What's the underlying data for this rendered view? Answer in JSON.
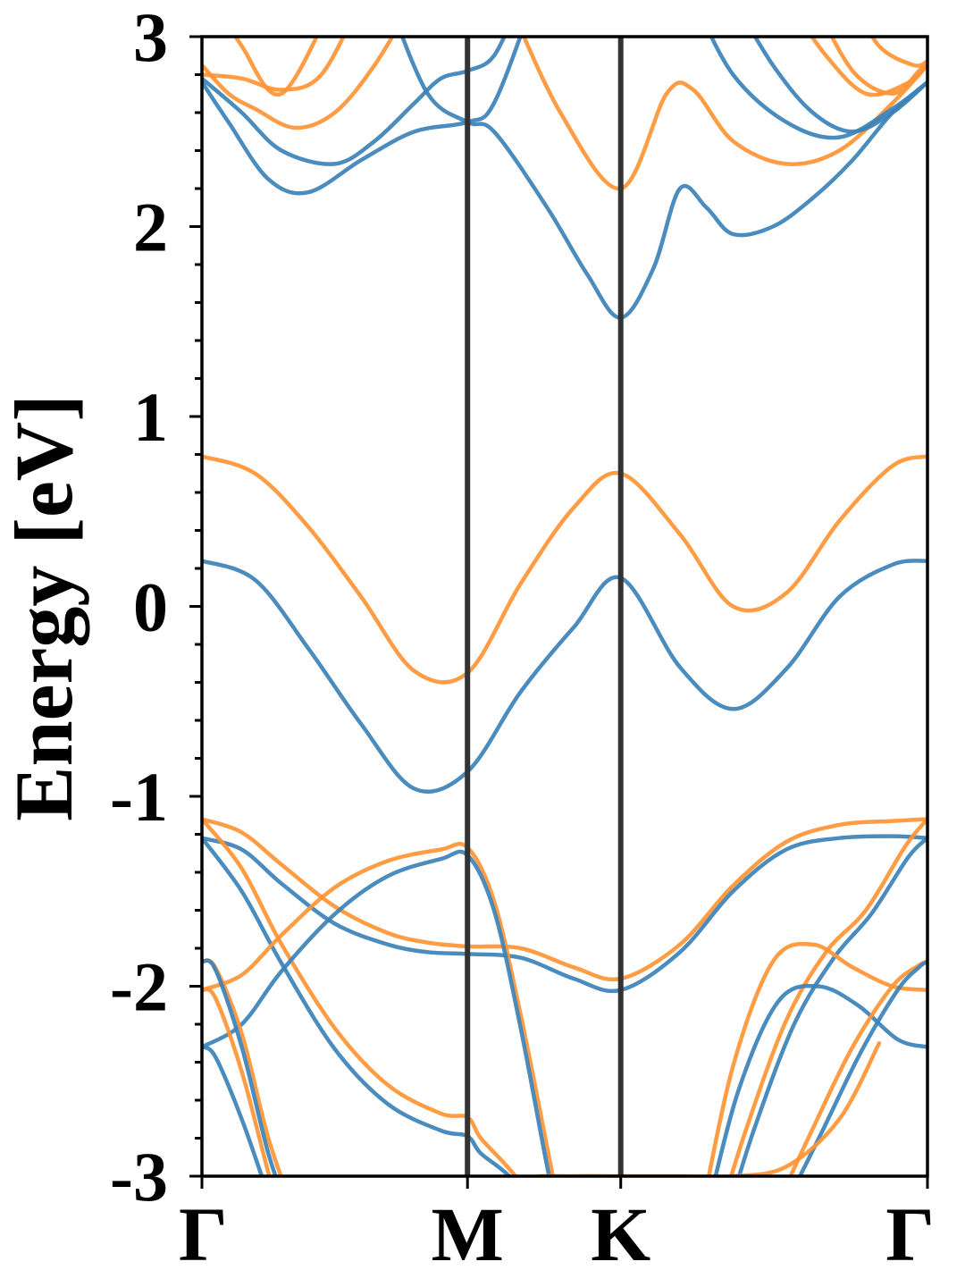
{
  "chart_data": {
    "type": "line",
    "title": "",
    "xlabel": "",
    "ylabel": "Energy [eV]",
    "ylim": [
      -3,
      3
    ],
    "grid": false,
    "legend": "none",
    "yticks": [
      {
        "value": 3,
        "label": "3"
      },
      {
        "value": 2,
        "label": "2"
      },
      {
        "value": 1,
        "label": "1"
      },
      {
        "value": 0,
        "label": "0"
      },
      {
        "value": -1,
        "label": "-1"
      },
      {
        "value": -2,
        "label": "-2"
      },
      {
        "value": -3,
        "label": "-3"
      }
    ],
    "kpath": [
      {
        "label": "Γ",
        "position": 0.0
      },
      {
        "label": "M",
        "position": 1.0
      },
      {
        "label": "K",
        "position": 1.577
      },
      {
        "label": "Γ",
        "position": 2.732
      }
    ],
    "colors": {
      "spin_up": "#3b82b8",
      "spin_down": "#ff9434",
      "divider": "#333333"
    },
    "series": [
      {
        "group": "spin_down",
        "x": [
          0,
          0.2,
          0.4,
          0.6,
          0.8,
          1.0,
          1.2,
          1.4,
          1.577,
          1.8,
          2.0,
          2.2,
          2.4,
          2.6,
          2.732
        ],
        "values": [
          0.79,
          0.7,
          0.42,
          0.05,
          -0.34,
          -0.35,
          0.12,
          0.52,
          0.7,
          0.38,
          0.0,
          0.07,
          0.45,
          0.74,
          0.79
        ]
      },
      {
        "group": "spin_up",
        "x": [
          0,
          0.2,
          0.4,
          0.6,
          0.8,
          1.0,
          1.2,
          1.4,
          1.577,
          1.8,
          2.0,
          2.2,
          2.4,
          2.6,
          2.732
        ],
        "values": [
          0.24,
          0.14,
          -0.22,
          -0.62,
          -0.96,
          -0.87,
          -0.45,
          -0.11,
          0.15,
          -0.32,
          -0.54,
          -0.33,
          0.05,
          0.22,
          0.24
        ]
      },
      {
        "group": "spin_down",
        "x": [
          0,
          0.15,
          0.3,
          0.5,
          0.7,
          0.85,
          1.0,
          1.2,
          1.4,
          1.577,
          1.8,
          2.0,
          2.2,
          2.4,
          2.6,
          2.732
        ],
        "values": [
          -1.12,
          -1.19,
          -1.36,
          -1.58,
          -1.72,
          -1.77,
          -1.79,
          -1.8,
          -1.9,
          -1.96,
          -1.78,
          -1.47,
          -1.24,
          -1.15,
          -1.13,
          -1.12
        ]
      },
      {
        "group": "spin_up",
        "x": [
          0,
          0.15,
          0.3,
          0.5,
          0.7,
          0.85,
          1.0,
          1.2,
          1.4,
          1.577,
          1.8,
          2.0,
          2.2,
          2.4,
          2.6,
          2.732
        ],
        "values": [
          -1.22,
          -1.28,
          -1.46,
          -1.67,
          -1.78,
          -1.82,
          -1.83,
          -1.85,
          -1.96,
          -2.02,
          -1.82,
          -1.5,
          -1.28,
          -1.22,
          -1.21,
          -1.22
        ]
      },
      {
        "group": "spin_down",
        "x": [
          0,
          0.15,
          0.3,
          0.5,
          0.7,
          0.9,
          1.0,
          1.05,
          1.15,
          1.3
        ],
        "values": [
          -1.12,
          -1.38,
          -1.78,
          -2.22,
          -2.52,
          -2.67,
          -2.69,
          -2.8,
          -2.95,
          -3.2
        ]
      },
      {
        "group": "spin_up",
        "x": [
          0,
          0.15,
          0.3,
          0.5,
          0.7,
          0.9,
          1.0,
          1.05,
          1.15,
          1.3
        ],
        "values": [
          -1.22,
          -1.5,
          -1.88,
          -2.33,
          -2.62,
          -2.76,
          -2.79,
          -2.88,
          -2.99,
          -3.2
        ]
      },
      {
        "group": "spin_down",
        "x": [
          0,
          0.15,
          0.3,
          0.5,
          0.7,
          0.9,
          1.0,
          1.1,
          1.2,
          1.3,
          1.35
        ],
        "values": [
          -2.02,
          -1.94,
          -1.73,
          -1.48,
          -1.34,
          -1.28,
          -1.27,
          -1.55,
          -2.15,
          -2.85,
          -3.2
        ]
      },
      {
        "group": "spin_up",
        "x": [
          0,
          0.15,
          0.3,
          0.5,
          0.7,
          0.9,
          1.0,
          1.1,
          1.2,
          1.3,
          1.34
        ],
        "values": [
          -2.32,
          -2.2,
          -1.92,
          -1.62,
          -1.42,
          -1.33,
          -1.31,
          -1.6,
          -2.22,
          -2.95,
          -3.2
        ]
      },
      {
        "group": "spin_down",
        "x": [
          0,
          0.05,
          0.15,
          0.25,
          0.35
        ],
        "values": [
          -1.87,
          -1.9,
          -2.25,
          -2.8,
          -3.2
        ]
      },
      {
        "group": "spin_up",
        "x": [
          0,
          0.05,
          0.15,
          0.25,
          0.33
        ],
        "values": [
          -1.87,
          -1.91,
          -2.32,
          -2.88,
          -3.2
        ]
      },
      {
        "group": "spin_down",
        "x": [
          0,
          0.05,
          0.15,
          0.25,
          0.3
        ],
        "values": [
          -2.02,
          -2.06,
          -2.45,
          -2.98,
          -3.2
        ]
      },
      {
        "group": "spin_up",
        "x": [
          0,
          0.05,
          0.15,
          0.25,
          0.28
        ],
        "values": [
          -2.32,
          -2.37,
          -2.7,
          -3.1,
          -3.2
        ]
      },
      {
        "group": "spin_down",
        "x": [
          1.95,
          2.05,
          2.2,
          2.35,
          2.5,
          2.65,
          2.732
        ],
        "values": [
          -3.2,
          -2.75,
          -2.18,
          -1.82,
          -1.6,
          -1.26,
          -1.12
        ]
      },
      {
        "group": "spin_up",
        "x": [
          1.98,
          2.08,
          2.23,
          2.38,
          2.52,
          2.66,
          2.732
        ],
        "values": [
          -3.2,
          -2.75,
          -2.2,
          -1.85,
          -1.62,
          -1.32,
          -1.22
        ]
      },
      {
        "group": "spin_down",
        "x": [
          1.88,
          2.0,
          2.15,
          2.3,
          2.45,
          2.6,
          2.732
        ],
        "values": [
          -3.2,
          -2.42,
          -1.87,
          -1.78,
          -1.9,
          -2.0,
          -2.02
        ]
      },
      {
        "group": "spin_up",
        "x": [
          1.9,
          2.02,
          2.17,
          2.32,
          2.47,
          2.62,
          2.732
        ],
        "values": [
          -3.2,
          -2.55,
          -2.08,
          -2.0,
          -2.1,
          -2.28,
          -2.32
        ]
      },
      {
        "group": "spin_down",
        "x": [
          2.15,
          2.3,
          2.45,
          2.6,
          2.7,
          2.732
        ],
        "values": [
          -3.2,
          -2.75,
          -2.32,
          -2.0,
          -1.89,
          -1.87
        ]
      },
      {
        "group": "spin_up",
        "x": [
          2.18,
          2.33,
          2.48,
          2.62,
          2.7,
          2.732
        ],
        "values": [
          -3.2,
          -2.78,
          -2.35,
          -2.02,
          -1.9,
          -1.87
        ]
      },
      {
        "group": "spin_down",
        "x": [
          1.0,
          1.2,
          1.4,
          1.577,
          1.8,
          2.0,
          2.2,
          2.4,
          2.55
        ],
        "values": [
          -3.2,
          -3.02,
          -3.0,
          -3.0,
          -3.0,
          -3.0,
          -2.95,
          -2.7,
          -2.3
        ]
      },
      {
        "group": "spin_up",
        "x": [
          1.3,
          1.4,
          1.577,
          1.72,
          1.8
        ],
        "values": [
          -3.2,
          -3.08,
          -3.02,
          -3.06,
          -3.2
        ]
      },
      {
        "group": "spin_up",
        "x": [
          0.7,
          0.85,
          1.0,
          1.1,
          1.3,
          1.45,
          1.577,
          1.7,
          1.8,
          1.9,
          2.0,
          2.15,
          2.3,
          2.45,
          2.6,
          2.732
        ],
        "values": [
          3.2,
          2.7,
          2.55,
          2.5,
          2.1,
          1.75,
          1.52,
          1.78,
          2.2,
          2.1,
          1.96,
          2.0,
          2.15,
          2.35,
          2.6,
          2.76
        ]
      },
      {
        "group": "spin_up",
        "x": [
          0,
          0.1,
          0.25,
          0.4,
          0.6,
          0.8,
          1.0,
          1.1,
          1.25
        ],
        "values": [
          2.76,
          2.55,
          2.25,
          2.18,
          2.35,
          2.5,
          2.55,
          2.65,
          3.2
        ]
      },
      {
        "group": "spin_down",
        "x": [
          1.15,
          1.35,
          1.577,
          1.75,
          1.85,
          2.0,
          2.2,
          2.4,
          2.6,
          2.732
        ],
        "values": [
          3.2,
          2.6,
          2.2,
          2.7,
          2.72,
          2.45,
          2.33,
          2.4,
          2.65,
          2.85
        ]
      },
      {
        "group": "spin_up",
        "x": [
          0,
          0.15,
          0.3,
          0.5,
          0.65,
          0.8,
          0.9,
          1.0,
          1.1,
          1.2
        ],
        "values": [
          2.78,
          2.6,
          2.4,
          2.33,
          2.45,
          2.65,
          2.78,
          2.82,
          2.9,
          3.2
        ]
      },
      {
        "group": "spin_up",
        "x": [
          1.85,
          2.0,
          2.2,
          2.4,
          2.6,
          2.732
        ],
        "values": [
          3.2,
          2.8,
          2.55,
          2.47,
          2.62,
          2.76
        ]
      },
      {
        "group": "spin_up",
        "x": [
          2.0,
          2.15,
          2.3,
          2.45,
          2.6,
          2.732
        ],
        "values": [
          3.2,
          2.85,
          2.6,
          2.5,
          2.6,
          2.76
        ]
      },
      {
        "group": "spin_down",
        "x": [
          0,
          0.1,
          0.2,
          0.35,
          0.5,
          0.65,
          0.8
        ],
        "values": [
          2.85,
          2.7,
          2.62,
          2.52,
          2.6,
          2.85,
          3.2
        ]
      },
      {
        "group": "spin_down",
        "x": [
          0,
          0.15,
          0.3,
          0.45,
          0.6
        ],
        "values": [
          2.8,
          2.78,
          2.72,
          2.8,
          3.2
        ]
      },
      {
        "group": "spin_down",
        "x": [
          0.05,
          0.15,
          0.3,
          0.5
        ],
        "values": [
          3.2,
          2.95,
          2.7,
          3.2
        ]
      },
      {
        "group": "spin_down",
        "x": [
          2.2,
          2.35,
          2.5,
          2.65,
          2.732
        ],
        "values": [
          3.2,
          2.9,
          2.7,
          2.75,
          2.85
        ]
      },
      {
        "group": "spin_down",
        "x": [
          2.3,
          2.45,
          2.6,
          2.7,
          2.732
        ],
        "values": [
          3.2,
          2.82,
          2.7,
          2.82,
          2.87
        ]
      },
      {
        "group": "spin_down",
        "x": [
          2.45,
          2.55,
          2.68,
          2.732
        ],
        "values": [
          3.2,
          2.95,
          2.85,
          2.87
        ]
      }
    ]
  }
}
